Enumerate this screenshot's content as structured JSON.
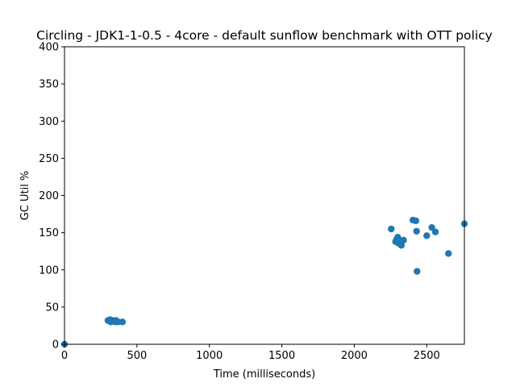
{
  "chart_data": {
    "type": "scatter",
    "title": "Circling - JDK1-1-0.5 - 4core -  default sunflow benchmark with OTT policy",
    "xlabel": "Time (milliseconds)",
    "ylabel": "GC Util %",
    "xlim": [
      0,
      2760
    ],
    "ylim": [
      0,
      400
    ],
    "xticks": [
      0,
      500,
      1000,
      1500,
      2000,
      2500
    ],
    "yticks": [
      0,
      50,
      100,
      150,
      200,
      250,
      300,
      350,
      400
    ],
    "grid": false,
    "color": "#1f77b4",
    "points": [
      {
        "x": 0,
        "y": 0
      },
      {
        "x": 300,
        "y": 32
      },
      {
        "x": 310,
        "y": 31
      },
      {
        "x": 315,
        "y": 33
      },
      {
        "x": 320,
        "y": 30
      },
      {
        "x": 330,
        "y": 32
      },
      {
        "x": 340,
        "y": 31
      },
      {
        "x": 350,
        "y": 30
      },
      {
        "x": 355,
        "y": 32
      },
      {
        "x": 360,
        "y": 31
      },
      {
        "x": 370,
        "y": 30
      },
      {
        "x": 400,
        "y": 30
      },
      {
        "x": 2255,
        "y": 155
      },
      {
        "x": 2285,
        "y": 138
      },
      {
        "x": 2292,
        "y": 141
      },
      {
        "x": 2300,
        "y": 144
      },
      {
        "x": 2305,
        "y": 136
      },
      {
        "x": 2315,
        "y": 139
      },
      {
        "x": 2325,
        "y": 133
      },
      {
        "x": 2340,
        "y": 140
      },
      {
        "x": 2405,
        "y": 167
      },
      {
        "x": 2425,
        "y": 166
      },
      {
        "x": 2430,
        "y": 152
      },
      {
        "x": 2433,
        "y": 98
      },
      {
        "x": 2500,
        "y": 146
      },
      {
        "x": 2535,
        "y": 157
      },
      {
        "x": 2560,
        "y": 151
      },
      {
        "x": 2650,
        "y": 122
      },
      {
        "x": 2760,
        "y": 162
      }
    ]
  }
}
